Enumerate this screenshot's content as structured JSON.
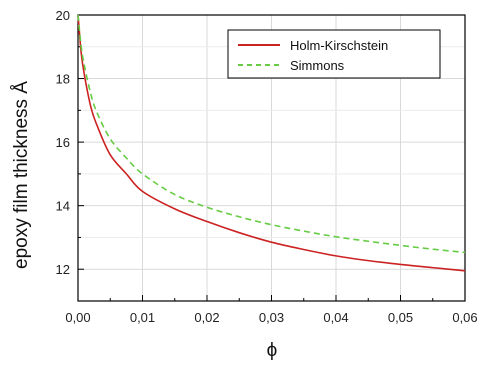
{
  "chart_data": {
    "type": "line",
    "title": "",
    "xlabel": "ϕ",
    "ylabel": "epoxy film thickness Å",
    "xlim": [
      0,
      0.06
    ],
    "ylim": [
      11.0,
      20.0
    ],
    "x_ticks": [
      "0,00",
      "0,01",
      "0,02",
      "0,03",
      "0,04",
      "0,05",
      "0,06"
    ],
    "y_ticks": [
      "12",
      "14",
      "16",
      "18",
      "20"
    ],
    "grid": true,
    "legend_position": "top-right",
    "series": [
      {
        "name": "Holm-Kirschstein",
        "color": "#cc2222",
        "style": "solid",
        "x": [
          0.0,
          0.0005,
          0.001,
          0.002,
          0.003,
          0.005,
          0.0075,
          0.01,
          0.015,
          0.02,
          0.025,
          0.03,
          0.035,
          0.04,
          0.045,
          0.05,
          0.055,
          0.06
        ],
        "y": [
          20.0,
          18.8,
          18.1,
          17.1,
          16.5,
          15.6,
          15.0,
          14.45,
          13.9,
          13.5,
          13.15,
          12.85,
          12.62,
          12.42,
          12.27,
          12.15,
          12.05,
          11.95
        ]
      },
      {
        "name": "Simmons",
        "color": "#66cc44",
        "style": "dashed",
        "x": [
          0.0,
          0.0005,
          0.001,
          0.002,
          0.003,
          0.005,
          0.0075,
          0.01,
          0.015,
          0.02,
          0.025,
          0.03,
          0.035,
          0.04,
          0.045,
          0.05,
          0.055,
          0.06
        ],
        "y": [
          20.0,
          19.0,
          18.4,
          17.5,
          16.9,
          16.1,
          15.5,
          15.0,
          14.35,
          13.95,
          13.65,
          13.4,
          13.2,
          13.02,
          12.88,
          12.75,
          12.63,
          12.53
        ]
      }
    ]
  }
}
